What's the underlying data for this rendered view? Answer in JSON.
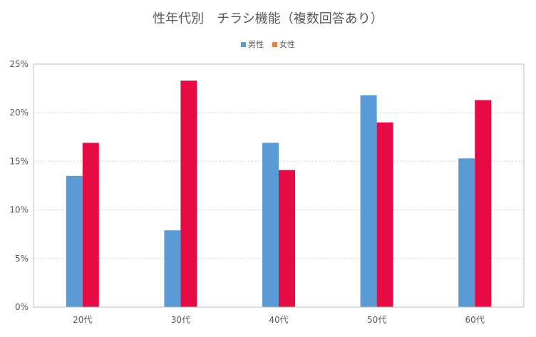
{
  "chart_data": {
    "type": "bar",
    "title": "性年代別　チラシ機能（複数回答あり）",
    "categories": [
      "20代",
      "30代",
      "40代",
      "50代",
      "60代"
    ],
    "series": [
      {
        "name": "男性",
        "color": "#5b9bd5",
        "values": [
          13.5,
          7.9,
          16.9,
          21.8,
          15.3
        ]
      },
      {
        "name": "女性",
        "color": "#e60b45",
        "values": [
          16.9,
          23.3,
          14.1,
          19.0,
          21.3
        ]
      }
    ],
    "legend_colors": [
      "#5b9bd5",
      "#ed7d31"
    ],
    "ylim": [
      0,
      25
    ],
    "yticks": [
      "0%",
      "5%",
      "10%",
      "15%",
      "20%",
      "25%"
    ],
    "grid": true,
    "legend_position": "top"
  }
}
